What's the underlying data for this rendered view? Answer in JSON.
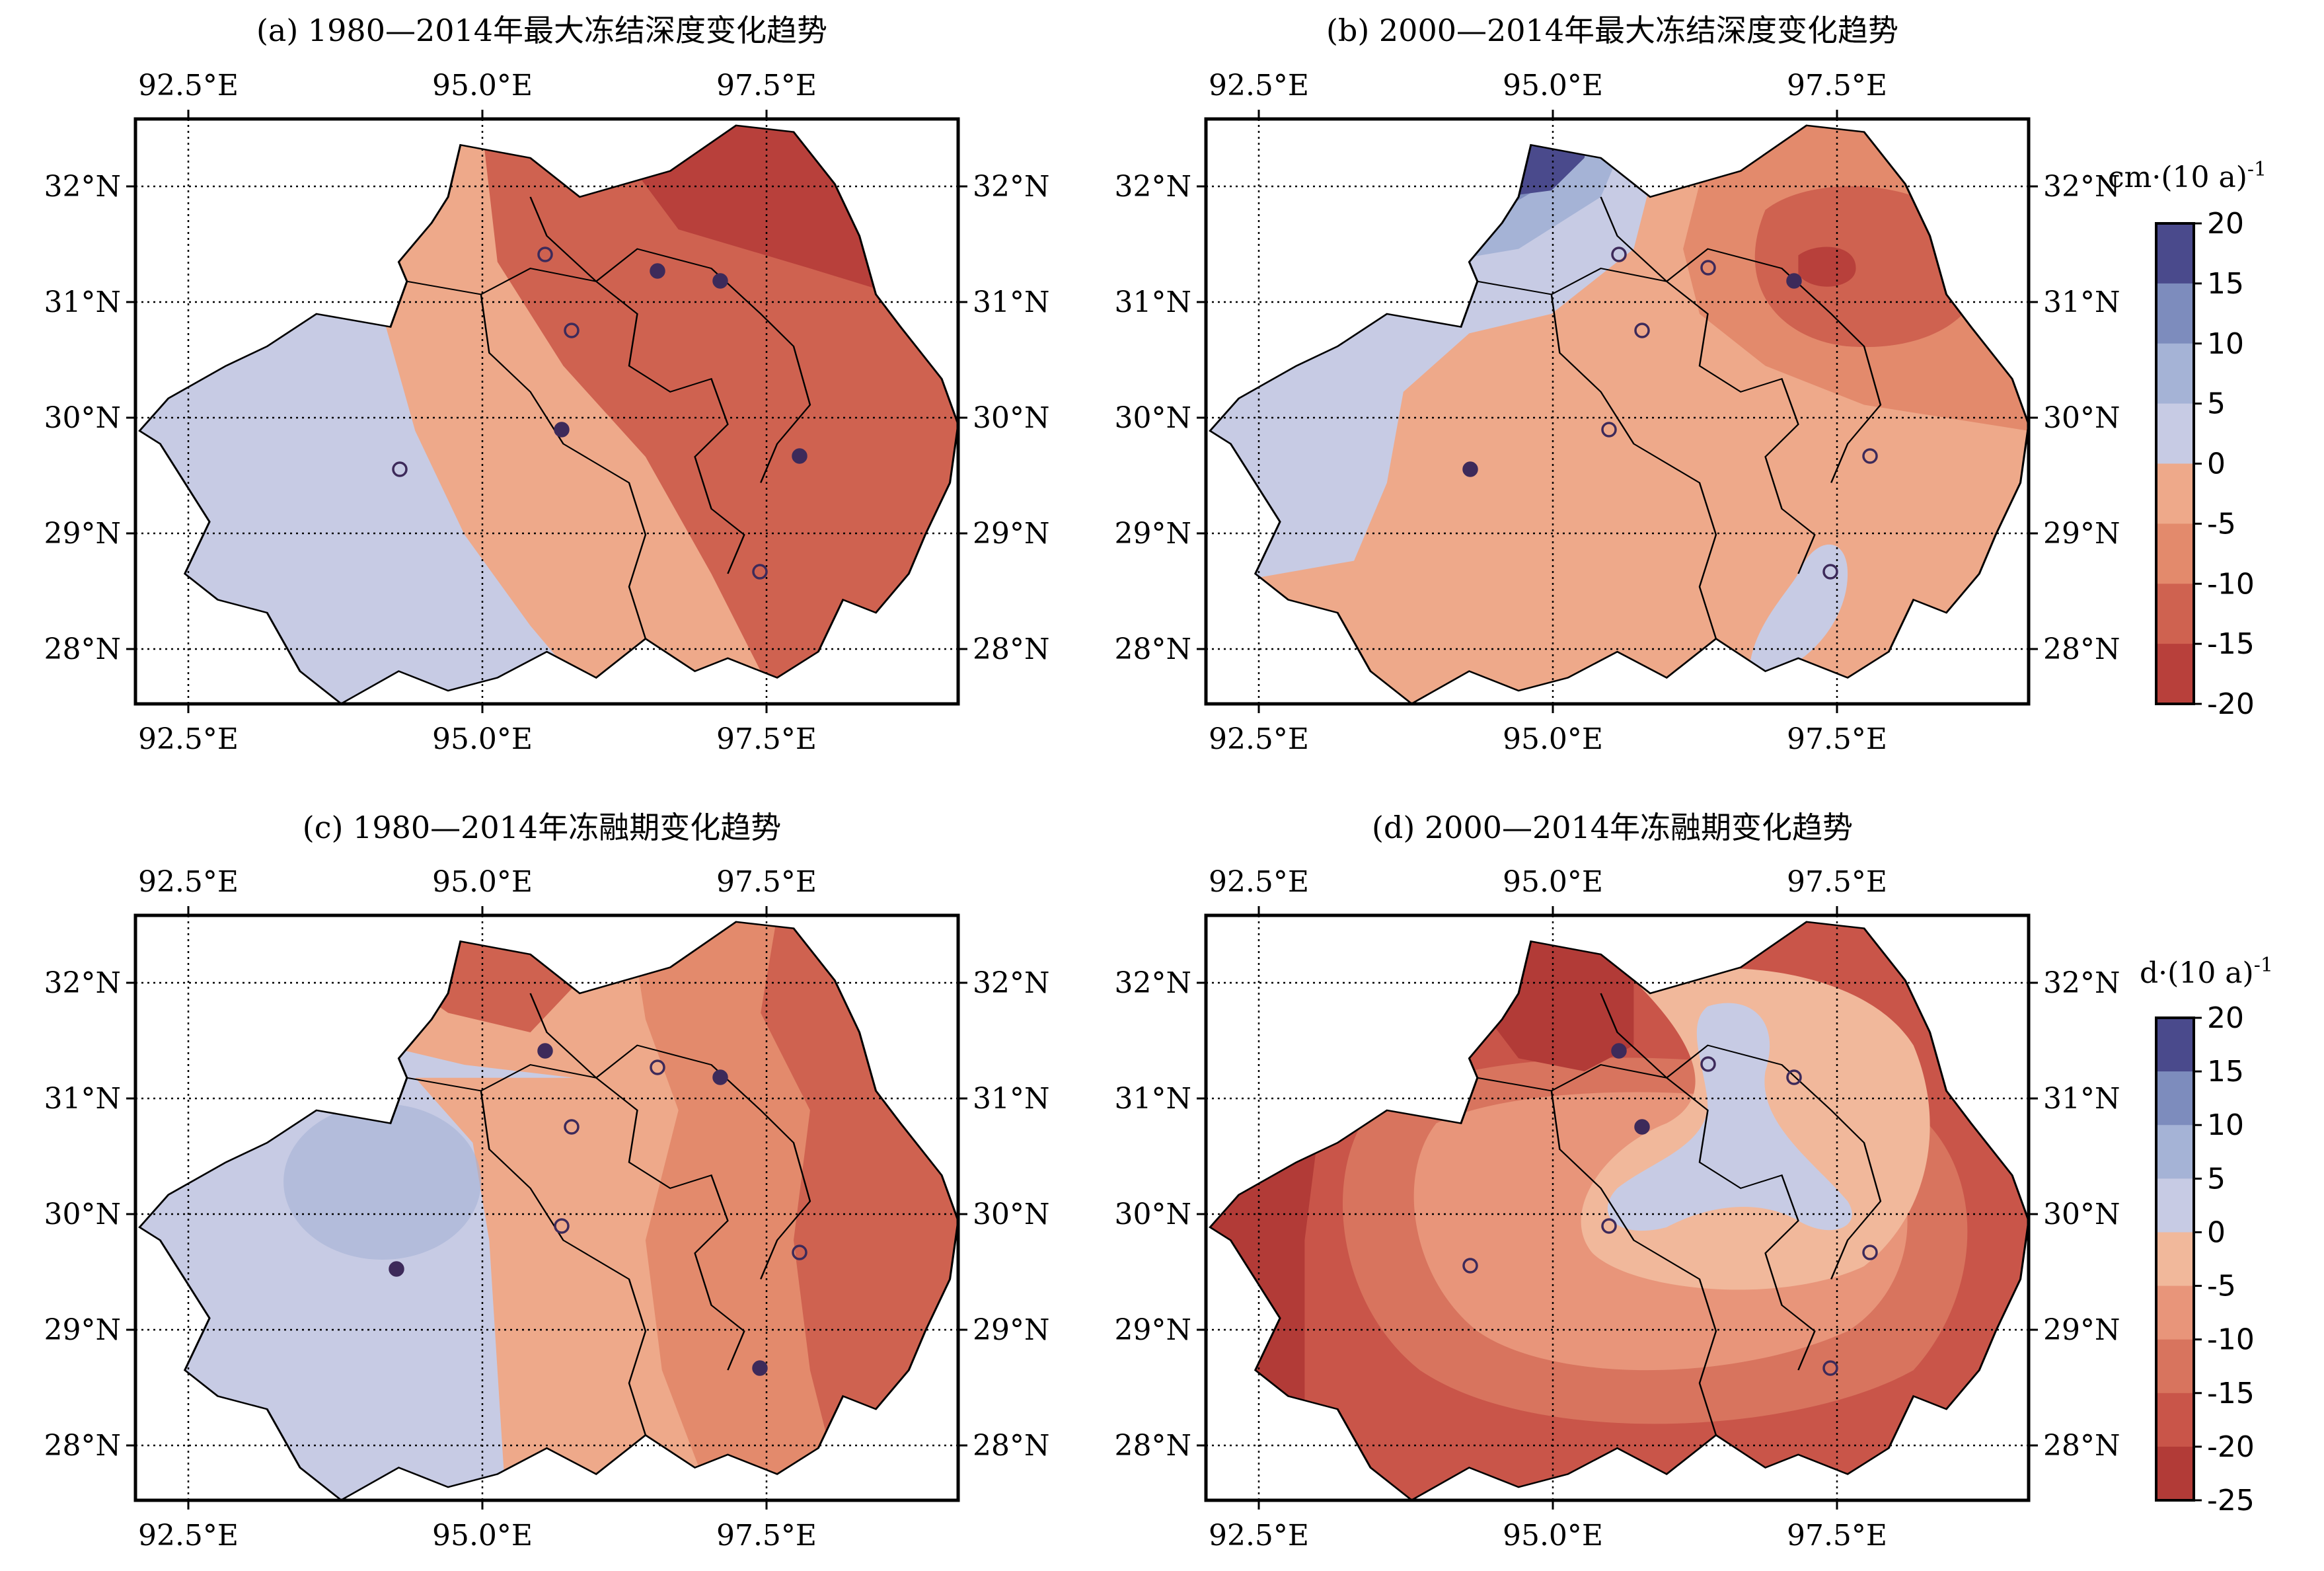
{
  "panels": [
    {
      "key": "a",
      "title": "(a) 1980—2014年最大冻结深度变化趋势",
      "x_ticks": [
        "92.5°E",
        "95.0°E",
        "97.5°E"
      ],
      "y_ticks": [
        "32°N",
        "31°N",
        "30°N",
        "29°N",
        "28°N"
      ]
    },
    {
      "key": "b",
      "title": "(b) 2000—2014年最大冻结深度变化趋势",
      "x_ticks": [
        "92.5°E",
        "95.0°E",
        "97.5°E"
      ],
      "y_ticks": [
        "32°N",
        "31°N",
        "30°N",
        "29°N",
        "28°N"
      ]
    },
    {
      "key": "c",
      "title": "(c) 1980—2014年冻融期变化趋势",
      "x_ticks": [
        "92.5°E",
        "95.0°E",
        "97.5°E"
      ],
      "y_ticks": [
        "32°N",
        "31°N",
        "30°N",
        "29°N",
        "28°N"
      ]
    },
    {
      "key": "d",
      "title": "(d) 2000—2014年冻融期变化趋势",
      "x_ticks": [
        "92.5°E",
        "95.0°E",
        "97.5°E"
      ],
      "y_ticks": [
        "32°N",
        "31°N",
        "30°N",
        "29°N",
        "28°N"
      ]
    }
  ],
  "colorbars": [
    {
      "key": "depth",
      "unit": "cm·(10 a)",
      "unit_sup": "-1",
      "ticks": [
        "20",
        "15",
        "10",
        "5",
        "0",
        "-5",
        "-10",
        "-15",
        "-20"
      ],
      "colors": [
        "#4a4a8c",
        "#7d8cbd",
        "#a5b3d6",
        "#c7cbe4",
        "#eea98a",
        "#e38a6c",
        "#cf6250",
        "#b8403b"
      ]
    },
    {
      "key": "period",
      "unit": "d·(10 a)",
      "unit_sup": "-1",
      "ticks": [
        "20",
        "15",
        "10",
        "5",
        "0",
        "-5",
        "-10",
        "-15",
        "-20",
        "-25"
      ],
      "colors": [
        "#4a4a8c",
        "#7d8cbd",
        "#a5b3d6",
        "#c7cbe4",
        "#f1b89b",
        "#e8957a",
        "#d8745e",
        "#c95549",
        "#b23b37"
      ]
    }
  ],
  "map_colors": {
    "blue_light": "#c7cbe4",
    "blue_mid": "#a5b3d6",
    "blue_deep": "#4a4a8c",
    "orange_light": "#eea98a",
    "orange_mid": "#e38a6c",
    "red_mid": "#cf6250",
    "red_dark": "#b8403b",
    "station_dot": "#3d2a5a"
  }
}
